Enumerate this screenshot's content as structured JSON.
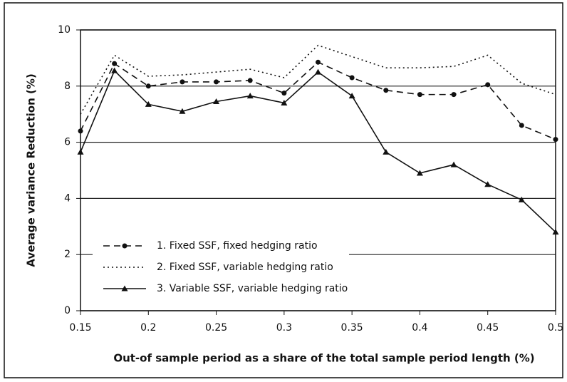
{
  "chart_data": {
    "type": "line",
    "ylabel": "Average variance Reduction (%)",
    "xlabel": "Out-of sample period as a share of the total sample period length (%)",
    "x": [
      0.15,
      0.175,
      0.2,
      0.225,
      0.25,
      0.275,
      0.3,
      0.325,
      0.35,
      0.375,
      0.4,
      0.425,
      0.45,
      0.475,
      0.5
    ],
    "series": [
      {
        "name": "1.  Fixed SSF, fixed hedging ratio",
        "color": "#111111",
        "dash": "dashed",
        "marker": "circle",
        "values": [
          6.4,
          8.8,
          8.0,
          8.15,
          8.15,
          8.2,
          7.75,
          8.85,
          8.3,
          7.85,
          7.7,
          7.7,
          8.05,
          6.6,
          6.1
        ]
      },
      {
        "name": "2.  Fixed SSF, variable hedging ratio",
        "color": "#111111",
        "dash": "dotted",
        "marker": "none",
        "values": [
          7.0,
          9.1,
          8.35,
          8.4,
          8.5,
          8.6,
          8.3,
          9.45,
          9.05,
          8.65,
          8.65,
          8.7,
          9.1,
          8.1,
          7.7
        ]
      },
      {
        "name": "3.  Variable SSF, variable hedging ratio",
        "color": "#111111",
        "dash": "solid",
        "marker": "triangle",
        "values": [
          5.65,
          8.55,
          7.35,
          7.1,
          7.45,
          7.65,
          7.4,
          8.5,
          7.65,
          5.65,
          4.9,
          5.2,
          4.5,
          3.95,
          2.8
        ]
      }
    ],
    "xlim": [
      0.15,
      0.5
    ],
    "xticks": [
      0.15,
      0.2,
      0.25,
      0.3,
      0.35,
      0.4,
      0.45,
      0.5
    ],
    "ylim": [
      0,
      10
    ],
    "yticks": [
      0,
      2,
      4,
      6,
      8,
      10
    ],
    "grid": true,
    "legend": "lower left"
  }
}
